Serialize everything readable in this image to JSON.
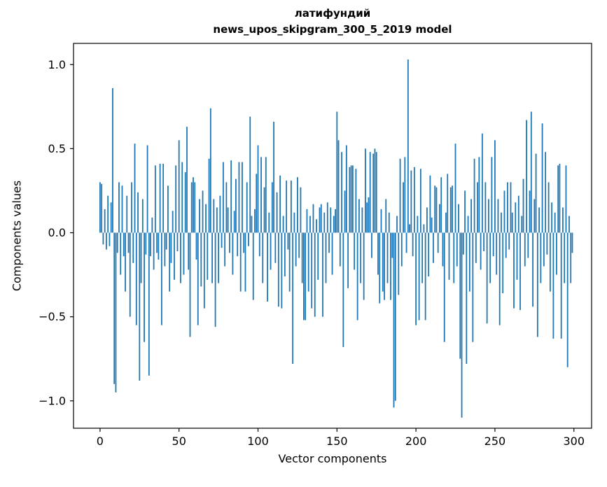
{
  "title": {
    "line1": "латифундий",
    "line2": "news_upos_skipgram_300_5_2019 model"
  },
  "chart_data": {
    "type": "bar",
    "title": "латифундий\nnews_upos_skipgram_300_5_2019 model",
    "xlabel": "Vector components",
    "ylabel": "Components values",
    "xlim": [
      -16.8,
      311.2
    ],
    "ylim": [
      -1.163,
      1.126
    ],
    "x_ticks": [
      0,
      50,
      100,
      150,
      200,
      250,
      300
    ],
    "x_tick_labels": [
      "0",
      "50",
      "100",
      "150",
      "200",
      "250",
      "300"
    ],
    "y_ticks": [
      -1.0,
      -0.5,
      0.0,
      0.5,
      1.0
    ],
    "y_tick_labels": [
      "−1.0",
      "−0.5",
      "0.0",
      "0.5",
      "1.0"
    ],
    "bar_color": "#1f77b4",
    "bar_width": 0.8,
    "grid": false,
    "legend": null,
    "values": [
      0.3,
      0.29,
      -0.07,
      0.14,
      -0.1,
      0.22,
      -0.08,
      0.18,
      0.86,
      -0.9,
      -0.95,
      -0.12,
      0.3,
      -0.25,
      0.28,
      -0.14,
      -0.35,
      0.22,
      -0.12,
      -0.5,
      0.3,
      -0.18,
      0.53,
      -0.55,
      0.24,
      -0.88,
      -0.3,
      0.2,
      -0.65,
      -0.13,
      0.52,
      -0.85,
      -0.14,
      0.09,
      -0.22,
      0.4,
      -0.12,
      -0.16,
      0.41,
      -0.55,
      0.41,
      -0.2,
      -0.1,
      0.28,
      -0.35,
      -0.18,
      0.13,
      -0.28,
      0.4,
      -0.11,
      0.55,
      -0.3,
      0.42,
      -0.25,
      0.36,
      0.63,
      -0.22,
      -0.62,
      0.3,
      0.33,
      0.3,
      -0.16,
      -0.55,
      0.2,
      -0.32,
      0.25,
      -0.45,
      0.17,
      -0.28,
      0.44,
      0.74,
      -0.3,
      0.2,
      -0.56,
      0.15,
      -0.3,
      0.22,
      -0.09,
      0.42,
      -0.2,
      0.3,
      0.15,
      -0.12,
      0.43,
      -0.25,
      0.13,
      0.32,
      -0.14,
      0.42,
      -0.35,
      0.42,
      -0.12,
      -0.35,
      0.3,
      -0.08,
      0.69,
      0.1,
      -0.4,
      0.14,
      0.35,
      0.52,
      -0.14,
      0.45,
      -0.3,
      0.27,
      0.45,
      -0.41,
      0.12,
      -0.22,
      0.3,
      0.66,
      -0.18,
      0.24,
      -0.44,
      0.34,
      -0.45,
      0.1,
      -0.26,
      0.31,
      -0.1,
      -0.35,
      0.31,
      -0.78,
      0.12,
      -0.2,
      0.33,
      -0.15,
      0.27,
      -0.3,
      -0.52,
      -0.52,
      0.14,
      -0.35,
      0.1,
      -0.45,
      0.17,
      -0.5,
      0.08,
      -0.28,
      0.15,
      0.17,
      -0.5,
      0.12,
      -0.3,
      0.18,
      -0.12,
      0.15,
      -0.25,
      0.1,
      0.14,
      0.72,
      0.55,
      -0.2,
      0.48,
      -0.68,
      0.25,
      0.52,
      -0.33,
      0.39,
      0.4,
      0.4,
      -0.22,
      0.38,
      -0.52,
      0.2,
      -0.3,
      0.15,
      -0.4,
      0.5,
      0.18,
      0.21,
      0.48,
      -0.15,
      0.47,
      0.5,
      0.48,
      -0.25,
      -0.42,
      0.14,
      -0.35,
      -0.4,
      0.2,
      -0.3,
      0.12,
      -0.4,
      -0.15,
      -1.04,
      -1.0,
      0.1,
      -0.37,
      0.44,
      -0.2,
      0.3,
      0.45,
      -0.12,
      1.03,
      0.05,
      0.37,
      -0.14,
      0.39,
      -0.55,
      0.1,
      -0.52,
      0.38,
      -0.3,
      0.05,
      -0.52,
      0.15,
      -0.26,
      0.34,
      0.09,
      -0.18,
      0.28,
      0.27,
      -0.12,
      0.17,
      0.33,
      -0.2,
      -0.65,
      0.12,
      0.35,
      -0.28,
      0.27,
      0.28,
      -0.3,
      0.53,
      -0.2,
      0.17,
      -0.75,
      -1.1,
      -0.13,
      0.25,
      -0.78,
      0.1,
      -0.35,
      0.2,
      -0.65,
      0.44,
      -0.18,
      0.3,
      0.45,
      -0.22,
      0.59,
      -0.11,
      0.3,
      -0.54,
      0.2,
      -0.3,
      0.45,
      -0.14,
      0.55,
      -0.25,
      0.2,
      -0.55,
      0.12,
      -0.36,
      0.25,
      -0.15,
      0.3,
      -0.1,
      0.3,
      0.12,
      -0.45,
      0.18,
      -0.28,
      0.22,
      -0.46,
      0.1,
      0.32,
      -0.2,
      0.67,
      -0.15,
      0.25,
      0.72,
      -0.44,
      0.2,
      0.47,
      -0.62,
      0.15,
      -0.3,
      0.65,
      -0.2,
      0.48,
      -0.13,
      0.3,
      -0.35,
      0.18,
      -0.63,
      0.12,
      -0.25,
      0.4,
      0.41,
      -0.63,
      0.15,
      -0.3,
      0.4,
      -0.8,
      0.1,
      -0.3,
      -0.12
    ]
  }
}
